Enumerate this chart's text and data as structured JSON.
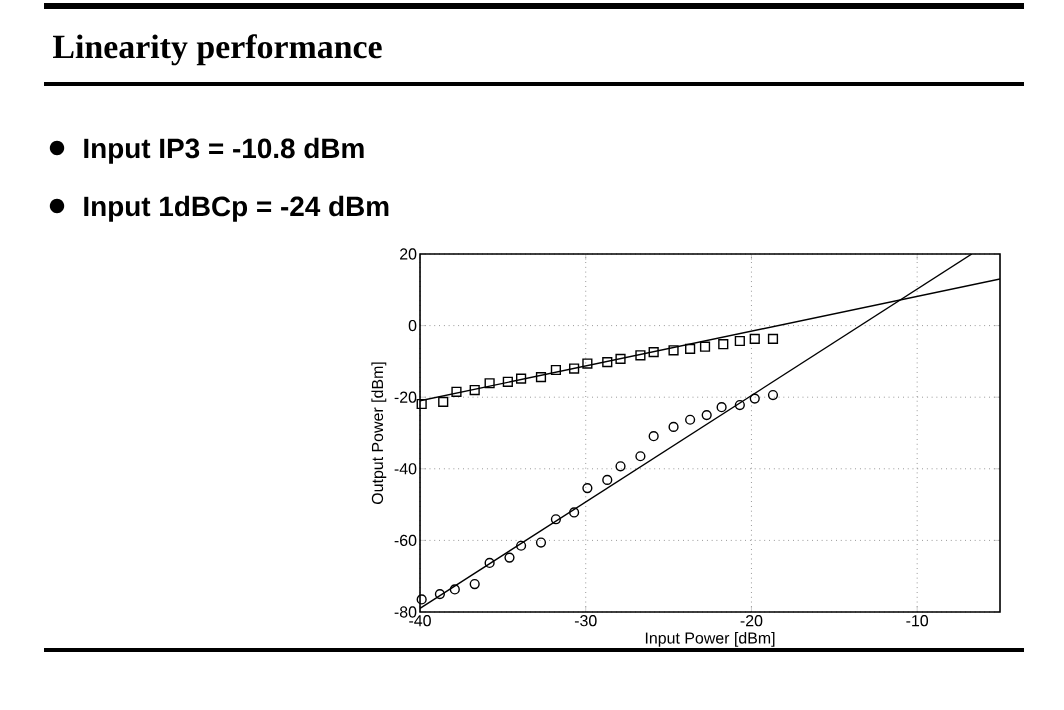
{
  "chart_data": {
    "type": "scatter",
    "title": "Linearity performance",
    "annotations": [
      "Input IP3 = -10.8 dBm",
      "Input 1dBCp = -24 dBm"
    ],
    "xlabel": "Input Power [dBm]",
    "ylabel": "Output Power [dBm]",
    "xlim": [
      -40,
      -5
    ],
    "ylim": [
      -80,
      20
    ],
    "xticks": [
      -40,
      -30,
      -20,
      -10
    ],
    "yticks": [
      -80,
      -60,
      -40,
      -20,
      0,
      20
    ],
    "grid": true,
    "series": [
      {
        "marker": "square",
        "color": "#000000",
        "x": [
          -39.9,
          -38.6,
          -37.8,
          -36.7,
          -35.8,
          -34.7,
          -33.9,
          -32.7,
          -31.8,
          -30.7,
          -29.9,
          -28.7,
          -27.9,
          -26.7,
          -25.9,
          -24.7,
          -23.7,
          -22.8,
          -21.7,
          -20.7,
          -19.8,
          -18.7
        ],
        "values": [
          -21.9,
          -21.3,
          -18.5,
          -18.0,
          -16.1,
          -15.7,
          -14.8,
          -14.4,
          -12.4,
          -12.0,
          -10.6,
          -10.2,
          -9.3,
          -8.3,
          -7.4,
          -6.9,
          -6.5,
          -5.9,
          -5.2,
          -4.3,
          -3.7,
          -3.7
        ]
      },
      {
        "marker": "circle",
        "color": "#000000",
        "x": [
          -39.9,
          -38.8,
          -37.9,
          -36.7,
          -35.8,
          -34.6,
          -33.9,
          -32.7,
          -31.8,
          -30.7,
          -29.9,
          -28.7,
          -27.9,
          -26.7,
          -25.9,
          -24.7,
          -23.7,
          -22.7,
          -21.8,
          -20.7,
          -19.8,
          -18.7
        ],
        "values": [
          -76.5,
          -75.0,
          -73.7,
          -72.2,
          -66.3,
          -64.8,
          -61.5,
          -60.6,
          -54.1,
          -52.2,
          -45.4,
          -43.1,
          -39.3,
          -36.5,
          -30.9,
          -28.3,
          -26.3,
          -25.0,
          -22.8,
          -22.2,
          -20.4,
          -19.4
        ]
      },
      {
        "type": "line",
        "marker": "none",
        "line_style": "solid",
        "color": "#000000",
        "x": [
          -40,
          -5
        ],
        "values": [
          -21,
          13
        ]
      },
      {
        "type": "line",
        "marker": "none",
        "line_style": "solid",
        "color": "#000000",
        "x": [
          -40,
          -6.7
        ],
        "values": [
          -79,
          20
        ]
      }
    ]
  }
}
